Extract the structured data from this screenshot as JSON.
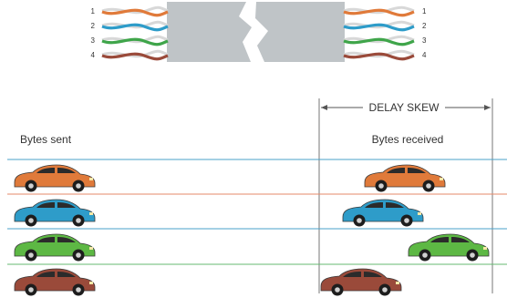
{
  "pairs": [
    {
      "number": "1",
      "color": "#E07A3A"
    },
    {
      "number": "2",
      "color": "#2E9CC9"
    },
    {
      "number": "3",
      "color": "#3FA54A"
    },
    {
      "number": "4",
      "color": "#9A4A3A"
    }
  ],
  "labels": {
    "sent": "Bytes sent",
    "received": "Bytes received",
    "delay_skew": "DELAY SKEW"
  },
  "lanes": [
    {
      "car_color": "#E07A3A",
      "arrival_order": 2
    },
    {
      "car_color": "#2E9CC9",
      "arrival_order": 1
    },
    {
      "car_color": "#5DB844",
      "arrival_order": 4
    },
    {
      "car_color": "#9A4A3A",
      "arrival_order": 0
    }
  ],
  "colors": {
    "cable_body": "#BFC4C7",
    "line": "#555555"
  }
}
